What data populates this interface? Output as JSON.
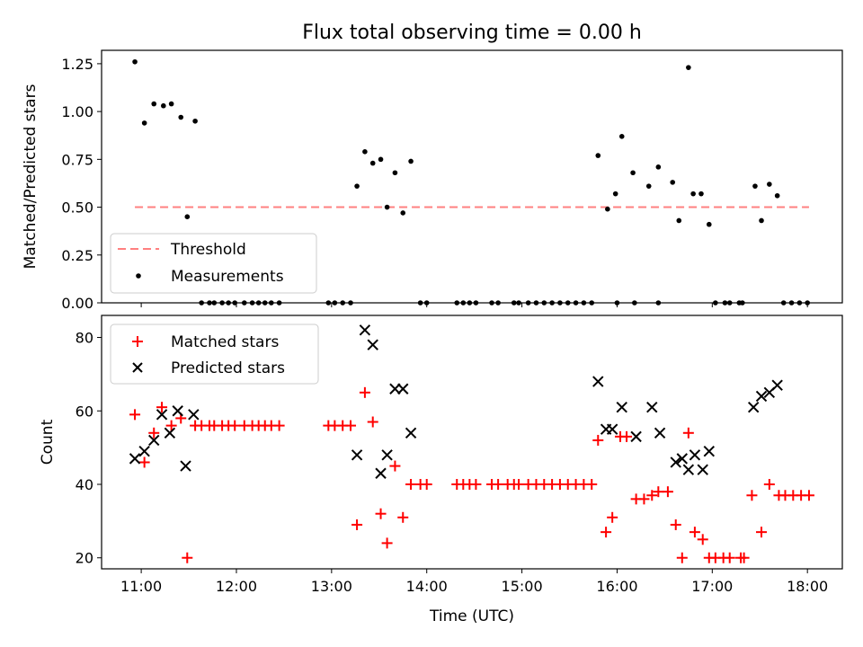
{
  "chart_data": [
    {
      "type": "scatter",
      "title": "Flux total observing time = 0.00 h",
      "xlabel": "",
      "ylabel": "Matched/Predicted stars",
      "ylim": [
        0,
        1.32
      ],
      "yticks": [
        0.0,
        0.25,
        0.5,
        0.75,
        1.0,
        1.25
      ],
      "ytick_labels": [
        "0.00",
        "0.25",
        "0.50",
        "0.75",
        "1.00",
        "1.25"
      ],
      "xlim": [
        "10:35",
        "18:22"
      ],
      "grid": false,
      "legend": "lower-left",
      "threshold": {
        "name": "Threshold",
        "value": 0.5,
        "x_range": [
          "10:56",
          "18:01"
        ],
        "color": "#ff8080",
        "style": "dashed"
      },
      "series": [
        {
          "name": "Measurements",
          "marker": "dot",
          "color": "#000000",
          "points": [
            [
              "10:56",
              1.26
            ],
            [
              "11:02",
              0.94
            ],
            [
              "11:08",
              1.04
            ],
            [
              "11:14",
              1.03
            ],
            [
              "11:19",
              1.04
            ],
            [
              "11:25",
              0.97
            ],
            [
              "11:29",
              0.45
            ],
            [
              "11:34",
              0.95
            ],
            [
              "11:38",
              0.0
            ],
            [
              "11:43",
              0.0
            ],
            [
              "11:46",
              0.0
            ],
            [
              "11:51",
              0.0
            ],
            [
              "11:55",
              0.0
            ],
            [
              "11:59",
              0.0
            ],
            [
              "12:05",
              0.0
            ],
            [
              "12:10",
              0.0
            ],
            [
              "12:14",
              0.0
            ],
            [
              "12:18",
              0.0
            ],
            [
              "12:22",
              0.0
            ],
            [
              "12:27",
              0.0
            ],
            [
              "12:58",
              0.0
            ],
            [
              "13:02",
              0.0
            ],
            [
              "13:07",
              0.0
            ],
            [
              "13:12",
              0.0
            ],
            [
              "13:16",
              0.61
            ],
            [
              "13:21",
              0.79
            ],
            [
              "13:26",
              0.73
            ],
            [
              "13:31",
              0.75
            ],
            [
              "13:35",
              0.5
            ],
            [
              "13:40",
              0.68
            ],
            [
              "13:45",
              0.47
            ],
            [
              "13:50",
              0.74
            ],
            [
              "13:56",
              0.0
            ],
            [
              "14:00",
              0.0
            ],
            [
              "14:19",
              0.0
            ],
            [
              "14:23",
              0.0
            ],
            [
              "14:27",
              0.0
            ],
            [
              "14:31",
              0.0
            ],
            [
              "14:41",
              0.0
            ],
            [
              "14:45",
              0.0
            ],
            [
              "14:55",
              0.0
            ],
            [
              "14:58",
              0.0
            ],
            [
              "15:04",
              0.0
            ],
            [
              "15:09",
              0.0
            ],
            [
              "15:14",
              0.0
            ],
            [
              "15:19",
              0.0
            ],
            [
              "15:24",
              0.0
            ],
            [
              "15:29",
              0.0
            ],
            [
              "15:34",
              0.0
            ],
            [
              "15:39",
              0.0
            ],
            [
              "15:44",
              0.0
            ],
            [
              "15:48",
              0.77
            ],
            [
              "15:54",
              0.49
            ],
            [
              "15:59",
              0.57
            ],
            [
              "16:03",
              0.87
            ],
            [
              "16:00",
              0.0
            ],
            [
              "16:10",
              0.68
            ],
            [
              "16:11",
              0.0
            ],
            [
              "16:20",
              0.61
            ],
            [
              "16:26",
              0.71
            ],
            [
              "16:26",
              0.0
            ],
            [
              "16:35",
              0.63
            ],
            [
              "16:39",
              0.43
            ],
            [
              "16:45",
              1.23
            ],
            [
              "16:48",
              0.57
            ],
            [
              "16:53",
              0.57
            ],
            [
              "16:58",
              0.41
            ],
            [
              "17:02",
              0.0
            ],
            [
              "17:08",
              0.0
            ],
            [
              "17:11",
              0.0
            ],
            [
              "17:17",
              0.0
            ],
            [
              "17:19",
              0.0
            ],
            [
              "17:27",
              0.61
            ],
            [
              "17:31",
              0.43
            ],
            [
              "17:36",
              0.62
            ],
            [
              "17:41",
              0.56
            ],
            [
              "17:45",
              0.0
            ],
            [
              "17:50",
              0.0
            ],
            [
              "17:55",
              0.0
            ],
            [
              "18:00",
              0.0
            ]
          ]
        }
      ]
    },
    {
      "type": "scatter",
      "title": "",
      "xlabel": "Time (UTC)",
      "ylabel": "Count",
      "ylim": [
        17,
        86
      ],
      "yticks": [
        20,
        40,
        60,
        80
      ],
      "ytick_labels": [
        "20",
        "40",
        "60",
        "80"
      ],
      "xlim": [
        "10:35",
        "18:22"
      ],
      "xticks": [
        "11:00",
        "12:00",
        "13:00",
        "14:00",
        "15:00",
        "16:00",
        "17:00",
        "18:00"
      ],
      "grid": false,
      "legend": "upper-left",
      "series": [
        {
          "name": "Matched stars",
          "marker": "plus",
          "color": "#ff0000",
          "points": [
            [
              "10:56",
              59
            ],
            [
              "11:02",
              46
            ],
            [
              "11:08",
              54
            ],
            [
              "11:13",
              61
            ],
            [
              "11:19",
              56
            ],
            [
              "11:25",
              58
            ],
            [
              "11:29",
              20
            ],
            [
              "11:34",
              56
            ],
            [
              "11:38",
              56
            ],
            [
              "11:43",
              56
            ],
            [
              "11:46",
              56
            ],
            [
              "11:51",
              56
            ],
            [
              "11:55",
              56
            ],
            [
              "11:59",
              56
            ],
            [
              "12:05",
              56
            ],
            [
              "12:10",
              56
            ],
            [
              "12:14",
              56
            ],
            [
              "12:18",
              56
            ],
            [
              "12:22",
              56
            ],
            [
              "12:27",
              56
            ],
            [
              "12:58",
              56
            ],
            [
              "13:02",
              56
            ],
            [
              "13:07",
              56
            ],
            [
              "13:12",
              56
            ],
            [
              "13:16",
              29
            ],
            [
              "13:21",
              65
            ],
            [
              "13:26",
              57
            ],
            [
              "13:31",
              32
            ],
            [
              "13:35",
              24
            ],
            [
              "13:40",
              45
            ],
            [
              "13:45",
              31
            ],
            [
              "13:50",
              40
            ],
            [
              "13:56",
              40
            ],
            [
              "14:00",
              40
            ],
            [
              "14:19",
              40
            ],
            [
              "14:23",
              40
            ],
            [
              "14:27",
              40
            ],
            [
              "14:31",
              40
            ],
            [
              "14:41",
              40
            ],
            [
              "14:45",
              40
            ],
            [
              "14:51",
              40
            ],
            [
              "14:55",
              40
            ],
            [
              "14:58",
              40
            ],
            [
              "15:04",
              40
            ],
            [
              "15:09",
              40
            ],
            [
              "15:14",
              40
            ],
            [
              "15:19",
              40
            ],
            [
              "15:24",
              40
            ],
            [
              "15:29",
              40
            ],
            [
              "15:34",
              40
            ],
            [
              "15:39",
              40
            ],
            [
              "15:44",
              40
            ],
            [
              "15:48",
              52
            ],
            [
              "15:53",
              27
            ],
            [
              "15:57",
              31
            ],
            [
              "16:02",
              53
            ],
            [
              "16:06",
              53
            ],
            [
              "16:12",
              36
            ],
            [
              "16:17",
              36
            ],
            [
              "16:22",
              37
            ],
            [
              "16:26",
              38
            ],
            [
              "16:32",
              38
            ],
            [
              "16:37",
              29
            ],
            [
              "16:41",
              20
            ],
            [
              "16:45",
              54
            ],
            [
              "16:49",
              27
            ],
            [
              "16:54",
              25
            ],
            [
              "16:58",
              20
            ],
            [
              "17:02",
              20
            ],
            [
              "17:07",
              20
            ],
            [
              "17:11",
              20
            ],
            [
              "17:18",
              20
            ],
            [
              "17:20",
              20
            ],
            [
              "17:25",
              37
            ],
            [
              "17:31",
              27
            ],
            [
              "17:36",
              40
            ],
            [
              "17:42",
              37
            ],
            [
              "17:46",
              37
            ],
            [
              "17:51",
              37
            ],
            [
              "17:56",
              37
            ],
            [
              "18:01",
              37
            ]
          ]
        },
        {
          "name": "Predicted stars",
          "marker": "x",
          "color": "#000000",
          "points": [
            [
              "10:56",
              47
            ],
            [
              "11:02",
              49
            ],
            [
              "11:08",
              52
            ],
            [
              "11:13",
              59
            ],
            [
              "11:18",
              54
            ],
            [
              "11:23",
              60
            ],
            [
              "11:28",
              45
            ],
            [
              "11:33",
              59
            ],
            [
              "13:16",
              48
            ],
            [
              "13:21",
              82
            ],
            [
              "13:26",
              78
            ],
            [
              "13:31",
              43
            ],
            [
              "13:35",
              48
            ],
            [
              "13:40",
              66
            ],
            [
              "13:45",
              66
            ],
            [
              "13:50",
              54
            ],
            [
              "15:48",
              68
            ],
            [
              "15:53",
              55
            ],
            [
              "15:57",
              55
            ],
            [
              "16:03",
              61
            ],
            [
              "16:12",
              53
            ],
            [
              "16:22",
              61
            ],
            [
              "16:27",
              54
            ],
            [
              "16:37",
              46
            ],
            [
              "16:41",
              47
            ],
            [
              "16:45",
              44
            ],
            [
              "16:49",
              48
            ],
            [
              "16:54",
              44
            ],
            [
              "16:58",
              49
            ],
            [
              "17:26",
              61
            ],
            [
              "17:31",
              64
            ],
            [
              "17:36",
              65
            ],
            [
              "17:41",
              67
            ]
          ]
        }
      ]
    }
  ]
}
